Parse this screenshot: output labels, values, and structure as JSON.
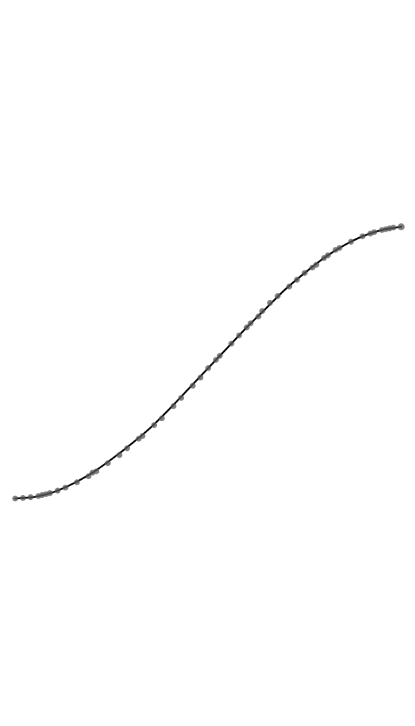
{
  "chart_data": {
    "type": "scatter",
    "title": "",
    "xlabel": "",
    "ylabel": "",
    "grid": false,
    "axes_visible": false,
    "xlim": [
      0,
      1
    ],
    "ylim": [
      0,
      1
    ],
    "colors": {
      "line": "#000000",
      "marker": "#555555"
    },
    "series": [
      {
        "kind": "line",
        "x": [
          0.0,
          0.05,
          0.1,
          0.15,
          0.2,
          0.25,
          0.3,
          0.35,
          0.4,
          0.45,
          0.5,
          0.55,
          0.6,
          0.65,
          0.7,
          0.75,
          0.8,
          0.85,
          0.9,
          0.95,
          1.0
        ],
        "y": [
          0.0,
          0.006,
          0.024,
          0.055,
          0.095,
          0.145,
          0.2,
          0.26,
          0.33,
          0.405,
          0.48,
          0.555,
          0.63,
          0.7,
          0.77,
          0.83,
          0.885,
          0.93,
          0.965,
          0.988,
          1.0
        ]
      },
      {
        "kind": "points",
        "x": [
          0.0,
          0.02,
          0.04,
          0.06,
          0.07,
          0.08,
          0.09,
          0.11,
          0.13,
          0.16,
          0.19,
          0.2,
          0.21,
          0.24,
          0.27,
          0.29,
          0.32,
          0.33,
          0.36,
          0.38,
          0.41,
          0.43,
          0.46,
          0.48,
          0.5,
          0.52,
          0.53,
          0.56,
          0.58,
          0.6,
          0.61,
          0.63,
          0.64,
          0.66,
          0.68,
          0.71,
          0.73,
          0.75,
          0.77,
          0.78,
          0.8,
          0.81,
          0.83,
          0.84,
          0.87,
          0.9,
          0.92,
          0.93,
          0.95,
          0.96,
          0.97,
          0.98,
          1.0
        ],
        "y": [
          0.0,
          0.002,
          0.005,
          0.009,
          0.013,
          0.016,
          0.02,
          0.029,
          0.04,
          0.06,
          0.082,
          0.095,
          0.1,
          0.13,
          0.16,
          0.185,
          0.22,
          0.23,
          0.27,
          0.295,
          0.34,
          0.37,
          0.415,
          0.445,
          0.48,
          0.51,
          0.525,
          0.57,
          0.6,
          0.63,
          0.645,
          0.67,
          0.69,
          0.72,
          0.745,
          0.78,
          0.805,
          0.83,
          0.85,
          0.86,
          0.885,
          0.895,
          0.915,
          0.922,
          0.945,
          0.965,
          0.975,
          0.98,
          0.988,
          0.991,
          0.994,
          0.997,
          1.0
        ]
      }
    ]
  }
}
